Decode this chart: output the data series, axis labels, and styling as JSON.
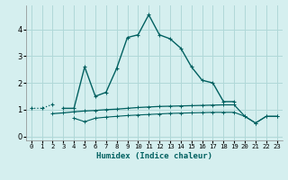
{
  "xlabel": "Humidex (Indice chaleur)",
  "x_values": [
    0,
    1,
    2,
    3,
    4,
    5,
    6,
    7,
    8,
    9,
    10,
    11,
    12,
    13,
    14,
    15,
    16,
    17,
    18,
    19,
    20,
    21,
    22,
    23
  ],
  "line_main": [
    null,
    null,
    null,
    1.05,
    1.05,
    2.6,
    1.5,
    1.65,
    2.55,
    3.7,
    3.8,
    4.55,
    3.8,
    3.65,
    3.3,
    2.6,
    2.1,
    2.0,
    1.3,
    1.3,
    null,
    null,
    null,
    null
  ],
  "line_dotted": [
    1.05,
    1.05,
    1.2,
    null,
    null,
    null,
    null,
    null,
    null,
    null,
    null,
    null,
    null,
    null,
    null,
    null,
    null,
    null,
    null,
    null,
    null,
    null,
    null,
    null
  ],
  "line_mid": [
    null,
    null,
    0.85,
    0.88,
    0.92,
    0.95,
    0.97,
    1.0,
    1.02,
    1.05,
    1.08,
    1.1,
    1.12,
    1.13,
    1.14,
    1.15,
    1.16,
    1.17,
    1.18,
    1.18,
    0.75,
    0.5,
    0.75,
    0.75
  ],
  "line_low": [
    null,
    null,
    null,
    null,
    0.68,
    0.55,
    0.68,
    0.72,
    0.75,
    0.78,
    0.8,
    0.82,
    0.84,
    0.86,
    0.87,
    0.88,
    0.89,
    0.9,
    0.9,
    0.9,
    0.75,
    0.5,
    0.75,
    0.75
  ],
  "bg_color": "#d5efef",
  "grid_color": "#b0d8d8",
  "line_color": "#006060",
  "ylim": [
    -0.15,
    4.9
  ],
  "xlim": [
    -0.5,
    23.5
  ],
  "yticks": [
    0,
    1,
    2,
    3,
    4
  ],
  "xticks": [
    0,
    1,
    2,
    3,
    4,
    5,
    6,
    7,
    8,
    9,
    10,
    11,
    12,
    13,
    14,
    15,
    16,
    17,
    18,
    19,
    20,
    21,
    22,
    23
  ]
}
